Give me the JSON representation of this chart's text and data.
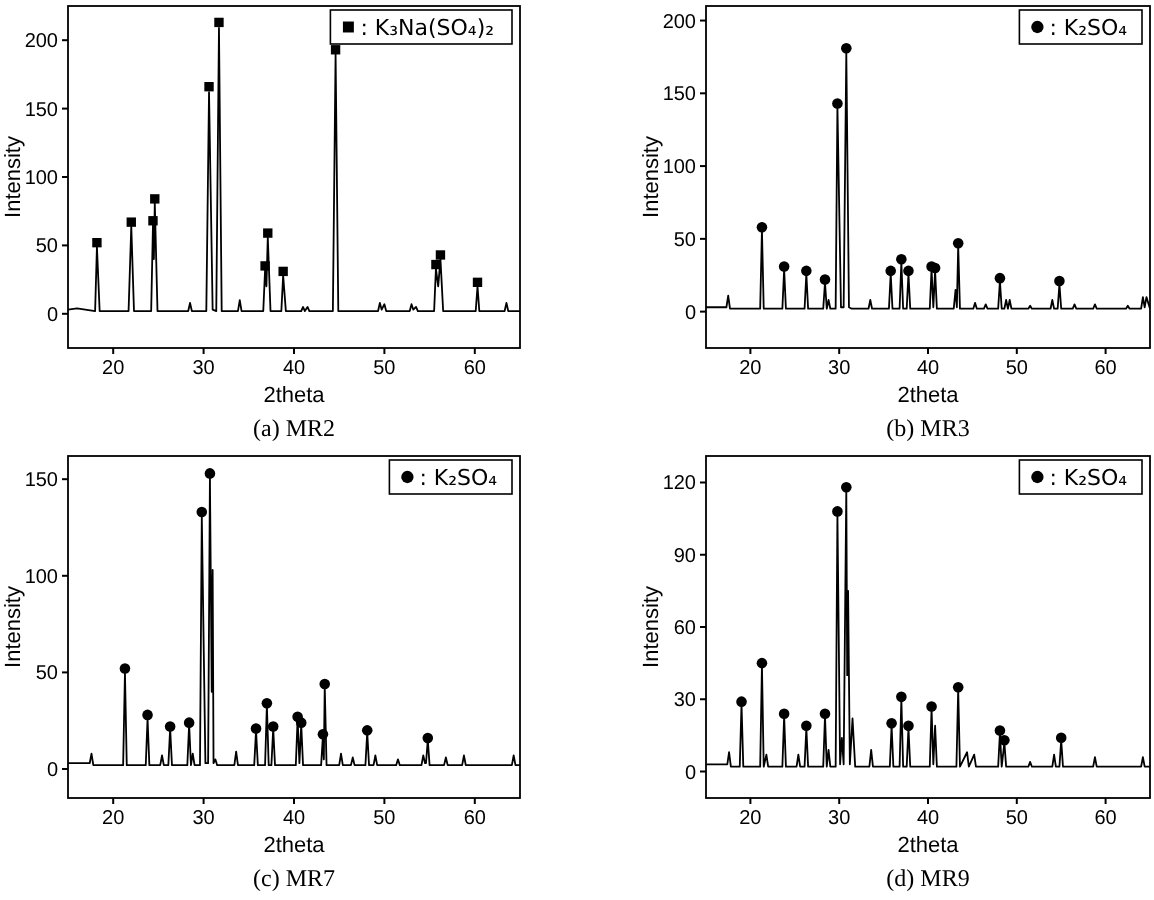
{
  "chart_data": [
    {
      "type": "line",
      "title": "(a) MR2",
      "xlabel": "2theta",
      "ylabel": "Intensity",
      "xlim": [
        15,
        65
      ],
      "ylim": [
        -25,
        225
      ],
      "xticks": [
        20,
        30,
        40,
        50,
        60
      ],
      "yticks": [
        0,
        50,
        100,
        150,
        200
      ],
      "legend": "top right",
      "series": [
        {
          "type": "line",
          "color": "#000000",
          "x": [
            15,
            16,
            18,
            18.2,
            18.5,
            21.7,
            22,
            22.3,
            24.2,
            24.4,
            24.5,
            24.6,
            24.9,
            28.3,
            28.5,
            28.7,
            30.3,
            30.6,
            31.0,
            31.4,
            31.7,
            32.0,
            33.8,
            34,
            34.2,
            36.6,
            36.8,
            36.95,
            37.1,
            37.4,
            38.6,
            38.8,
            39.1,
            40.8,
            41,
            41.2,
            41.5,
            41.7,
            44.3,
            44.6,
            44.9,
            49.3,
            49.5,
            49.7,
            50,
            50.2,
            52.8,
            53,
            53.2,
            53.5,
            53.7,
            55.5,
            55.7,
            55.95,
            56.2,
            56.5,
            60.1,
            60.3,
            60.5,
            63.3,
            63.5,
            63.7,
            65
          ],
          "values": [
            3,
            4,
            2,
            49,
            2,
            2,
            64,
            2,
            2,
            65,
            40,
            81,
            2,
            2,
            8,
            2,
            2,
            162,
            3,
            2,
            209,
            2,
            2,
            10,
            2,
            2,
            32,
            20,
            56,
            2,
            2,
            28,
            2,
            2,
            5,
            2,
            5,
            2,
            2,
            190,
            2,
            2,
            8,
            3,
            7,
            2,
            2,
            7,
            3,
            5,
            2,
            2,
            33,
            20,
            40,
            2,
            2,
            20,
            2,
            2,
            8,
            2,
            2
          ]
        },
        {
          "type": "scatter",
          "marker": "square",
          "name": ": K₃Na(SO₄)₂",
          "color": "#000000",
          "x": [
            18.2,
            22,
            24.4,
            24.6,
            30.6,
            31.7,
            36.8,
            37.1,
            38.8,
            44.6,
            55.7,
            56.2,
            60.3
          ],
          "values": [
            52,
            67,
            68,
            84,
            166,
            213,
            35,
            59,
            31,
            193,
            36,
            43,
            23
          ]
        }
      ]
    },
    {
      "type": "line",
      "title": "(b) MR3",
      "xlabel": "2theta",
      "ylabel": "Intensity",
      "xlim": [
        15,
        65
      ],
      "ylim": [
        -25,
        210
      ],
      "xticks": [
        20,
        30,
        40,
        50,
        60
      ],
      "yticks": [
        0,
        50,
        100,
        150,
        200
      ],
      "legend": "top right",
      "series": [
        {
          "type": "line",
          "color": "#000000",
          "x": [
            15,
            17.3,
            17.5,
            17.7,
            21.1,
            21.3,
            21.5,
            23.6,
            23.8,
            24,
            26.1,
            26.3,
            26.5,
            28.2,
            28.4,
            28.6,
            28.8,
            29,
            29.6,
            29.8,
            30.2,
            30.5,
            30.8,
            31.1,
            31.4,
            33.3,
            33.5,
            33.7,
            35.6,
            35.8,
            36,
            36.8,
            37,
            37.2,
            37.6,
            37.8,
            38,
            40.2,
            40.4,
            40.6,
            40.8,
            41,
            42.9,
            43.1,
            43.25,
            43.4,
            43.6,
            45.1,
            45.3,
            45.5,
            46.3,
            46.5,
            46.7,
            47.9,
            48.1,
            48.3,
            48.6,
            48.8,
            49,
            49.2,
            49.4,
            51.3,
            51.5,
            51.7,
            53.8,
            54,
            54.2,
            54.6,
            54.8,
            55,
            56.3,
            56.5,
            56.7,
            58.6,
            58.8,
            59,
            62.3,
            62.5,
            62.7,
            64,
            64.2,
            64.4,
            64.6,
            65
          ],
          "values": [
            3,
            3,
            11,
            2,
            2,
            56,
            2,
            2,
            29,
            2,
            2,
            26,
            2,
            2,
            20,
            2,
            8,
            2,
            2,
            141,
            3,
            3,
            178,
            3,
            2,
            2,
            8,
            2,
            2,
            26,
            2,
            2,
            34,
            2,
            2,
            26,
            2,
            2,
            29,
            3,
            28,
            2,
            2,
            15,
            3,
            45,
            2,
            2,
            6,
            2,
            2,
            5,
            2,
            2,
            21,
            2,
            2,
            8,
            2,
            8,
            2,
            2,
            4,
            2,
            2,
            8,
            2,
            2,
            19,
            2,
            2,
            5,
            2,
            2,
            5,
            2,
            2,
            4,
            2,
            2,
            10,
            3,
            10,
            2
          ]
        },
        {
          "type": "scatter",
          "marker": "circle",
          "name": ": K₂SO₄",
          "color": "#000000",
          "x": [
            21.3,
            23.8,
            26.3,
            28.4,
            29.8,
            30.8,
            35.8,
            37,
            37.8,
            40.4,
            40.8,
            43.4,
            48.1,
            54.8
          ],
          "values": [
            58,
            31,
            28,
            22,
            143,
            181,
            28,
            36,
            28,
            31,
            30,
            47,
            23,
            21
          ]
        }
      ]
    },
    {
      "type": "line",
      "title": "(c) MR7",
      "xlabel": "2theta",
      "ylabel": "Intensity",
      "xlim": [
        15,
        65
      ],
      "ylim": [
        -15,
        162
      ],
      "xticks": [
        20,
        30,
        40,
        50,
        60
      ],
      "yticks": [
        0,
        50,
        100,
        150
      ],
      "legend": "top right",
      "series": [
        {
          "type": "line",
          "color": "#000000",
          "x": [
            15,
            17.4,
            17.6,
            17.8,
            21.1,
            21.3,
            21.5,
            23.6,
            23.8,
            24,
            25.2,
            25.4,
            25.6,
            26.1,
            26.3,
            26.5,
            28.2,
            28.4,
            28.6,
            28.8,
            29,
            29.2,
            29.6,
            29.8,
            30.2,
            30.5,
            30.7,
            30.9,
            31.0,
            31.1,
            31.3,
            31.5,
            33.4,
            33.6,
            33.8,
            35.6,
            35.8,
            36,
            36.8,
            37,
            37.2,
            37.5,
            37.7,
            37.9,
            40.2,
            40.4,
            40.6,
            40.8,
            41,
            43.0,
            43.2,
            43.3,
            43.4,
            43.6,
            45,
            45.2,
            45.4,
            46.3,
            46.5,
            46.7,
            47.9,
            48.1,
            48.3,
            48.8,
            49,
            49.2,
            51.3,
            51.5,
            51.7,
            54.1,
            54.3,
            54.5,
            54.6,
            54.8,
            55,
            56.6,
            56.8,
            57,
            58.6,
            58.8,
            59,
            64.1,
            64.3,
            64.5,
            65
          ],
          "values": [
            3,
            3,
            8,
            2,
            2,
            50,
            2,
            2,
            26,
            2,
            2,
            7,
            2,
            2,
            21,
            2,
            2,
            23,
            2,
            8,
            2,
            2,
            2,
            131,
            3,
            3,
            151,
            40,
            103,
            3,
            5,
            2,
            2,
            9,
            2,
            2,
            20,
            2,
            2,
            33,
            2,
            2,
            21,
            2,
            2,
            26,
            3,
            23,
            2,
            2,
            17,
            5,
            43,
            2,
            2,
            8,
            2,
            2,
            6,
            2,
            2,
            19,
            2,
            2,
            7,
            2,
            2,
            5,
            2,
            2,
            7,
            3,
            3,
            15,
            2,
            2,
            6,
            2,
            2,
            7,
            2,
            2,
            7,
            2,
            2
          ]
        },
        {
          "type": "scatter",
          "marker": "circle",
          "name": ": K₂SO₄",
          "color": "#000000",
          "x": [
            21.3,
            23.8,
            26.3,
            28.4,
            29.8,
            30.7,
            35.8,
            37,
            37.7,
            40.4,
            40.8,
            43.2,
            43.4,
            48.1,
            54.8
          ],
          "values": [
            52,
            28,
            22,
            24,
            133,
            153,
            21,
            34,
            22,
            27,
            24,
            18,
            44,
            20,
            16
          ]
        }
      ]
    },
    {
      "type": "line",
      "title": "(d) MR9",
      "xlabel": "2theta",
      "ylabel": "Intensity",
      "xlim": [
        15,
        65
      ],
      "ylim": [
        -11,
        131
      ],
      "xticks": [
        20,
        30,
        40,
        50,
        60
      ],
      "yticks": [
        0,
        30,
        60,
        90,
        120
      ],
      "legend": "top right",
      "series": [
        {
          "type": "line",
          "color": "#000000",
          "x": [
            15,
            17.4,
            17.6,
            17.8,
            18.8,
            19,
            19.2,
            21.1,
            21.3,
            21.5,
            21.8,
            22,
            23.6,
            23.8,
            24,
            25.2,
            25.4,
            25.6,
            26.1,
            26.3,
            26.5,
            28.2,
            28.4,
            28.6,
            28.8,
            29,
            29.2,
            29.6,
            29.8,
            30.1,
            30.3,
            30.5,
            30.8,
            30.9,
            31.0,
            31.2,
            31.5,
            31.8,
            33.4,
            33.6,
            33.8,
            35.7,
            35.9,
            36.1,
            36.8,
            37,
            37.2,
            37.6,
            37.8,
            38,
            40.2,
            40.4,
            40.6,
            40.8,
            41,
            43.2,
            43.4,
            43.6,
            44.4,
            44.6,
            45.2,
            45.4,
            47.9,
            48.1,
            48.3,
            48.6,
            48.8,
            51.3,
            51.5,
            51.7,
            54,
            54.2,
            54.4,
            54.8,
            55,
            55.2,
            58.6,
            58.8,
            59,
            64,
            64.2,
            64.4,
            65
          ],
          "values": [
            3,
            3,
            8,
            2,
            2,
            28,
            2,
            2,
            44,
            2,
            7,
            2,
            2,
            23,
            2,
            2,
            7,
            2,
            2,
            18,
            2,
            2,
            23,
            2,
            9,
            2,
            2,
            2,
            107,
            3,
            14,
            3,
            117,
            40,
            75,
            3,
            22,
            2,
            2,
            9,
            2,
            2,
            19,
            2,
            2,
            30,
            2,
            2,
            18,
            2,
            2,
            26,
            3,
            19,
            2,
            2,
            34,
            2,
            8,
            2,
            7,
            2,
            2,
            16,
            2,
            12,
            2,
            2,
            4,
            2,
            2,
            7,
            2,
            2,
            13,
            2,
            2,
            6,
            2,
            2,
            6,
            2,
            2
          ]
        },
        {
          "type": "scatter",
          "marker": "circle",
          "name": ": K₂SO₄",
          "color": "#000000",
          "x": [
            19,
            21.3,
            23.8,
            26.3,
            28.4,
            29.8,
            30.8,
            35.9,
            37,
            37.8,
            40.4,
            43.4,
            48.1,
            48.6,
            55.0
          ],
          "values": [
            29,
            45,
            24,
            19,
            24,
            108,
            118,
            20,
            31,
            19,
            27,
            35,
            17,
            13,
            14
          ]
        }
      ]
    }
  ]
}
